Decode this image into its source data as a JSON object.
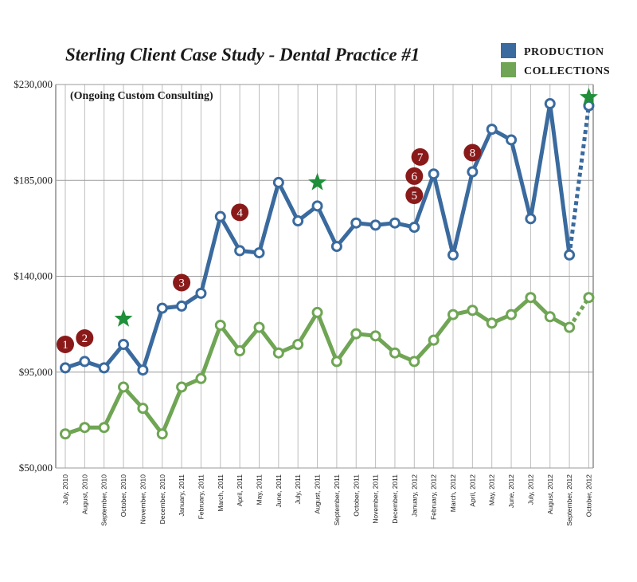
{
  "chart_data": {
    "type": "line",
    "title": "Sterling Client Case Study - Dental Practice #1",
    "subtitle": "(Ongoing Custom Consulting)",
    "categories": [
      "July, 2010",
      "August, 2010",
      "September, 2010",
      "October, 2010",
      "November, 2010",
      "December, 2010",
      "January, 2011",
      "February, 2011",
      "March, 2011",
      "April, 2011",
      "May, 2011",
      "June, 2011",
      "July, 2011",
      "August, 2011",
      "September, 2011",
      "October, 2011",
      "November, 2011",
      "December, 2011",
      "January, 2012",
      "February, 2012",
      "March, 2012",
      "April, 2012",
      "May, 2012",
      "June, 2012",
      "July, 2012",
      "August, 2012",
      "September, 2012",
      "October, 2012"
    ],
    "series": [
      {
        "name": "PRODUCTION",
        "color": "#3a6a9e",
        "values": [
          97000,
          100000,
          97000,
          108000,
          96000,
          125000,
          126000,
          132000,
          168000,
          152000,
          151000,
          184000,
          166000,
          173000,
          154000,
          165000,
          164000,
          165000,
          163000,
          188000,
          150000,
          189000,
          209000,
          204000,
          167000,
          221000,
          150000,
          220000
        ],
        "projected_from_index": 26
      },
      {
        "name": "COLLECTIONS",
        "color": "#6fa554",
        "values": [
          66000,
          69000,
          69000,
          88000,
          78000,
          66000,
          88000,
          92000,
          117000,
          105000,
          116000,
          104000,
          108000,
          123000,
          100000,
          113000,
          112000,
          104000,
          100000,
          110000,
          122000,
          124000,
          118000,
          122000,
          130000,
          121000,
          116000,
          130000
        ],
        "projected_from_index": 26
      }
    ],
    "ylim": [
      50000,
      230000
    ],
    "yticks": [
      {
        "value": 50000,
        "label": "$50,000"
      },
      {
        "value": 95000,
        "label": "$95,000"
      },
      {
        "value": 140000,
        "label": "$140,000"
      },
      {
        "value": 185000,
        "label": "$185,000"
      },
      {
        "value": 230000,
        "label": "$230,000"
      }
    ],
    "grid": true,
    "legend_position": "top-right",
    "annotations": [
      {
        "type": "number",
        "label": "1",
        "x_index": 0,
        "y": 108000,
        "color": "#8a1a1a"
      },
      {
        "type": "number",
        "label": "2",
        "x_index": 1,
        "y": 111000,
        "color": "#8a1a1a"
      },
      {
        "type": "number",
        "label": "3",
        "x_index": 6,
        "y": 137000,
        "color": "#8a1a1a"
      },
      {
        "type": "number",
        "label": "4",
        "x_index": 9,
        "y": 170000,
        "color": "#8a1a1a"
      },
      {
        "type": "number",
        "label": "5",
        "x_index": 18,
        "y": 178000,
        "color": "#8a1a1a"
      },
      {
        "type": "number",
        "label": "6",
        "x_index": 18,
        "y": 187000,
        "color": "#8a1a1a"
      },
      {
        "type": "number",
        "label": "7",
        "x_index": 18.3,
        "y": 196000,
        "color": "#8a1a1a"
      },
      {
        "type": "number",
        "label": "8",
        "x_index": 21,
        "y": 198000,
        "color": "#8a1a1a"
      },
      {
        "type": "star",
        "x_index": 3,
        "y": 120000,
        "color": "#1f8f3a"
      },
      {
        "type": "star",
        "x_index": 13,
        "y": 184000,
        "color": "#1f8f3a"
      },
      {
        "type": "star",
        "x_index": 27,
        "y": 224000,
        "color": "#1f8f3a"
      }
    ]
  }
}
